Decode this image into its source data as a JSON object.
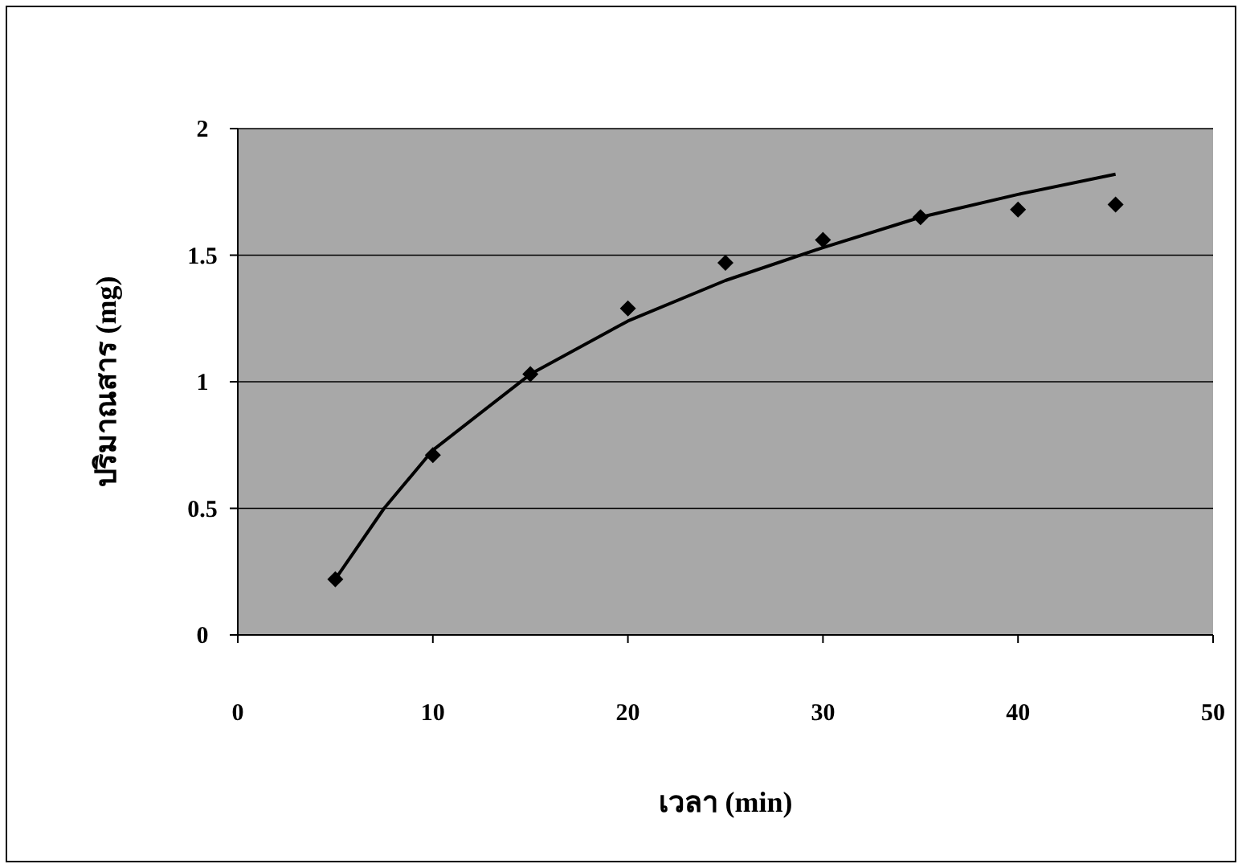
{
  "chart_data": {
    "type": "scatter",
    "xlabel": "เวลา (min)",
    "ylabel": "ปริมาณสาร (mg)",
    "xlim": [
      0,
      50
    ],
    "xticks": [
      0,
      10,
      20,
      30,
      40,
      50
    ],
    "ylim": [
      0,
      2
    ],
    "yticks": [
      0,
      0.5,
      1,
      1.5,
      2
    ],
    "grid": "y",
    "series": [
      {
        "marker": "diamond",
        "color": "#000000",
        "x": [
          5,
          10,
          15,
          20,
          25,
          30,
          35,
          40,
          45
        ],
        "values": [
          0.22,
          0.71,
          1.03,
          1.29,
          1.47,
          1.56,
          1.65,
          1.68,
          1.7
        ]
      },
      {
        "type": "line",
        "line_style": "solid",
        "color": "#000000",
        "x": [
          5,
          7.5,
          10,
          15,
          20,
          25,
          30,
          35,
          40,
          45
        ],
        "values": [
          0.22,
          0.5,
          0.73,
          1.03,
          1.24,
          1.4,
          1.53,
          1.65,
          1.74,
          1.82
        ]
      }
    ]
  }
}
